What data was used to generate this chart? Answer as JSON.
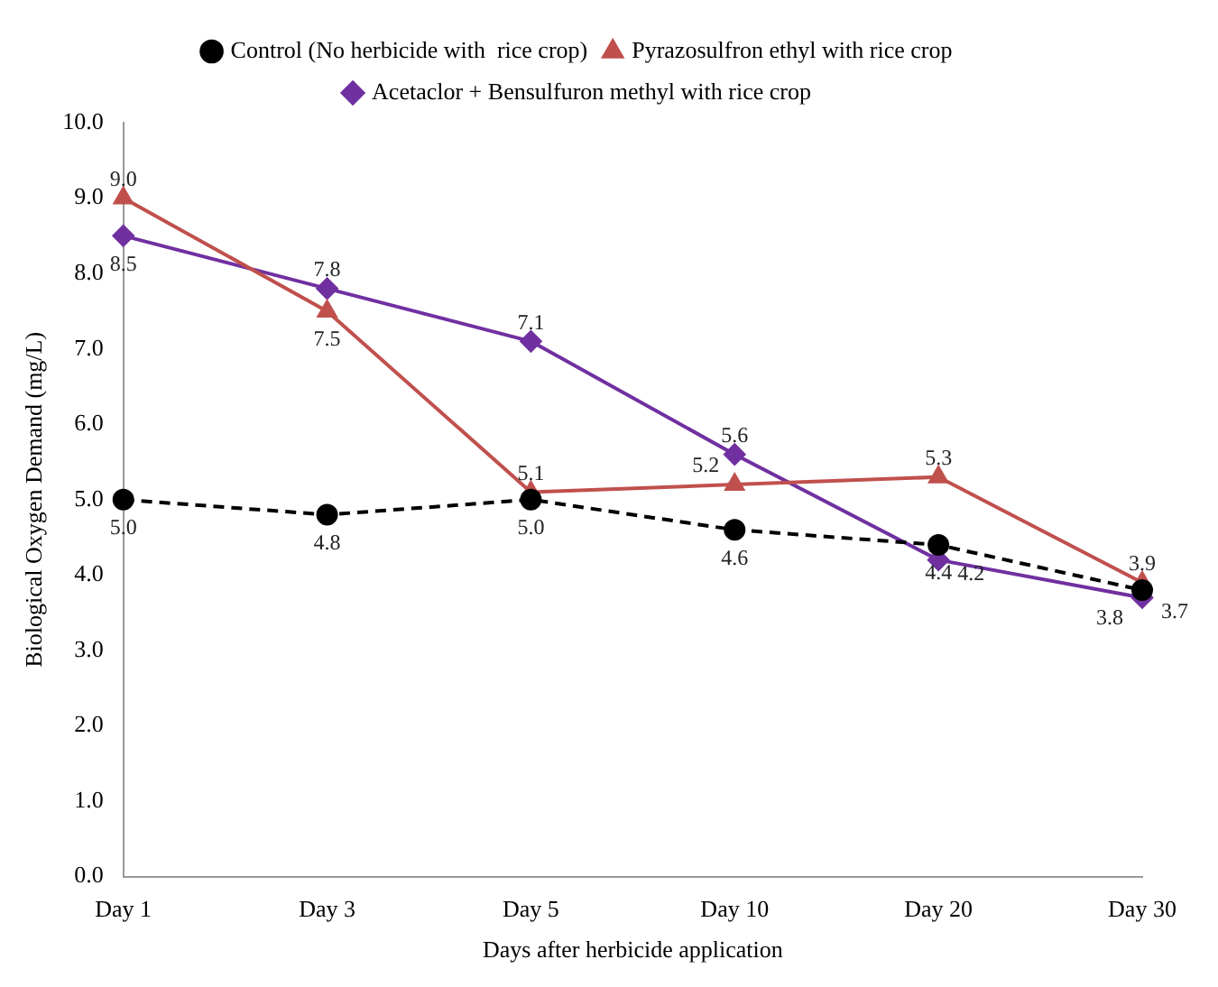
{
  "chart_data": {
    "type": "line",
    "xlabel": "Days after herbicide application",
    "ylabel": "Biological Oxygen Demand (mg/L)",
    "categories": [
      "Day 1",
      "Day 3",
      "Day 5",
      "Day 10",
      "Day 20",
      "Day 30"
    ],
    "series": [
      {
        "name": "Control (No herbicide with  rice crop)",
        "color": "#000000",
        "marker": "circle",
        "line_style": "dashed",
        "values": [
          5.0,
          4.8,
          5.0,
          4.6,
          4.4,
          3.8
        ],
        "value_labels": [
          "5.0",
          "4.8",
          "5.0",
          "4.6",
          "4.4",
          "3.8"
        ]
      },
      {
        "name": "Pyrazosulfron ethyl with rice crop",
        "color": "#c0504d",
        "marker": "triangle",
        "line_style": "solid",
        "values": [
          9.0,
          7.5,
          5.1,
          5.2,
          5.3,
          3.9
        ],
        "value_labels": [
          "9.0",
          "7.5",
          "5.1",
          "5.2",
          "5.3",
          "3.9"
        ]
      },
      {
        "name": "Acetaclor + Bensulfuron methyl with rice crop",
        "color": "#7030a0",
        "marker": "diamond",
        "line_style": "solid",
        "values": [
          8.5,
          7.8,
          7.1,
          5.6,
          4.2,
          3.7
        ],
        "value_labels": [
          "8.5",
          "7.8",
          "7.1",
          "5.6",
          "4.2",
          "3.7"
        ]
      }
    ],
    "ylim": [
      0,
      10
    ],
    "yticks": [
      {
        "value": 0,
        "label": "0.0"
      },
      {
        "value": 1,
        "label": "1.0"
      },
      {
        "value": 2,
        "label": "2.0"
      },
      {
        "value": 3,
        "label": "3.0"
      },
      {
        "value": 4,
        "label": "4.0"
      },
      {
        "value": 5,
        "label": "5.0"
      },
      {
        "value": 6,
        "label": "6.0"
      },
      {
        "value": 7,
        "label": "7.0"
      },
      {
        "value": 8,
        "label": "8.0"
      },
      {
        "value": 9,
        "label": "9.0"
      },
      {
        "value": 10,
        "label": "10.0"
      }
    ],
    "grid": false,
    "legend": "top"
  }
}
